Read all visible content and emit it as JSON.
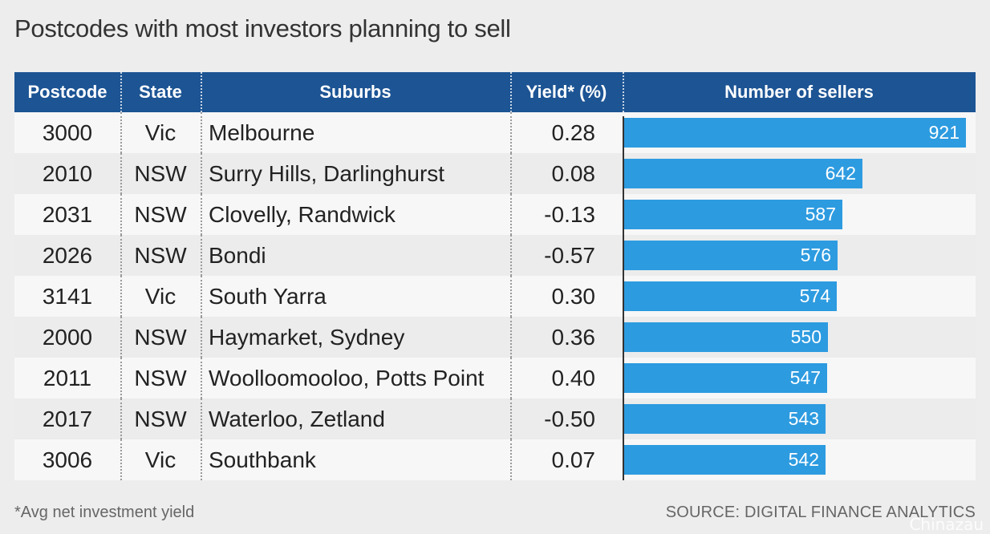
{
  "title": "Postcodes with most investors planning to sell",
  "columns": {
    "postcode": "Postcode",
    "state": "State",
    "suburbs": "Suburbs",
    "yield": "Yield* (%)",
    "sellers": "Number of sellers"
  },
  "footnote": "*Avg net investment yield",
  "source": "SOURCE: DIGITAL FINANCE ANALYTICS",
  "watermark": "Chinazau",
  "colors": {
    "header": "#1c5494",
    "bar": "#2d9be0"
  },
  "chart_data": {
    "type": "table",
    "title": "Postcodes with most investors planning to sell",
    "columns": [
      "Postcode",
      "State",
      "Suburbs",
      "Yield* (%)",
      "Number of sellers"
    ],
    "rows": [
      {
        "postcode": "3000",
        "state": "Vic",
        "suburbs": "Melbourne",
        "yield": "0.28",
        "sellers": 921
      },
      {
        "postcode": "2010",
        "state": "NSW",
        "suburbs": "Surry Hills, Darlinghurst",
        "yield": "0.08",
        "sellers": 642
      },
      {
        "postcode": "2031",
        "state": "NSW",
        "suburbs": "Clovelly, Randwick",
        "yield": "-0.13",
        "sellers": 587
      },
      {
        "postcode": "2026",
        "state": "NSW",
        "suburbs": "Bondi",
        "yield": "-0.57",
        "sellers": 576
      },
      {
        "postcode": "3141",
        "state": "Vic",
        "suburbs": "South Yarra",
        "yield": "0.30",
        "sellers": 574
      },
      {
        "postcode": "2000",
        "state": "NSW",
        "suburbs": "Haymarket, Sydney",
        "yield": "0.36",
        "sellers": 550
      },
      {
        "postcode": "2011",
        "state": "NSW",
        "suburbs": "Woolloomooloo, Potts Point",
        "yield": "0.40",
        "sellers": 547
      },
      {
        "postcode": "2017",
        "state": "NSW",
        "suburbs": "Waterloo, Zetland",
        "yield": "-0.50",
        "sellers": 543
      },
      {
        "postcode": "3006",
        "state": "Vic",
        "suburbs": "Southbank",
        "yield": "0.07",
        "sellers": 542
      }
    ]
  }
}
